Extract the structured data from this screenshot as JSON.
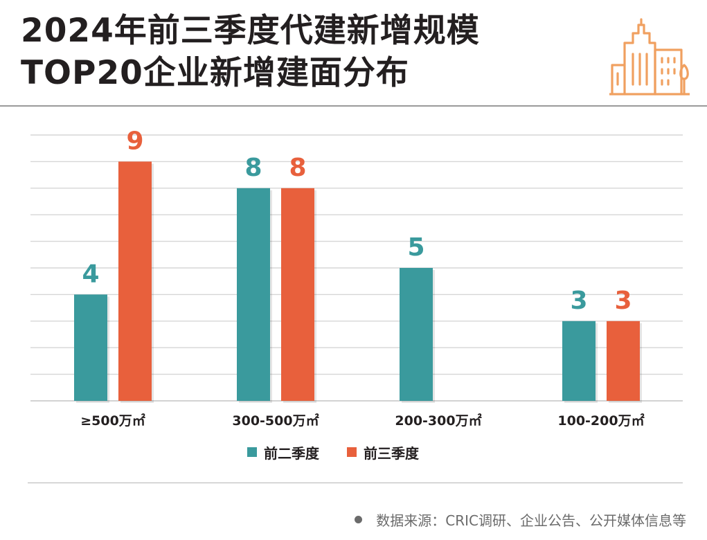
{
  "header": {
    "title": "2024年前三季度代建新增规模\nTOP20企业新增建面分布"
  },
  "colors": {
    "q2": "#3a9a9d",
    "q3": "#e8603c",
    "icon": "#f0a060",
    "grid": "#d6d6d6",
    "text": "#231f20"
  },
  "icons": {
    "header": "city-buildings-icon",
    "source": "bullet-dot-icon"
  },
  "chart_data": {
    "type": "bar",
    "title": "2024年前三季度代建新增规模TOP20企业新增建面分布",
    "categories": [
      "≥500万㎡",
      "300-500万㎡",
      "200-300万㎡",
      "100-200万㎡"
    ],
    "series": [
      {
        "name": "前二季度",
        "values": [
          4,
          8,
          5,
          3
        ]
      },
      {
        "name": "前三季度",
        "values": [
          9,
          8,
          null,
          3
        ]
      }
    ],
    "ylim": [
      0,
      10
    ],
    "grid": true,
    "legend_position": "bottom"
  },
  "legend": {
    "items": [
      {
        "label": "前二季度"
      },
      {
        "label": "前三季度"
      }
    ]
  },
  "footer": {
    "source": "数据来源：CRIC调研、企业公告、公开媒体信息等"
  }
}
